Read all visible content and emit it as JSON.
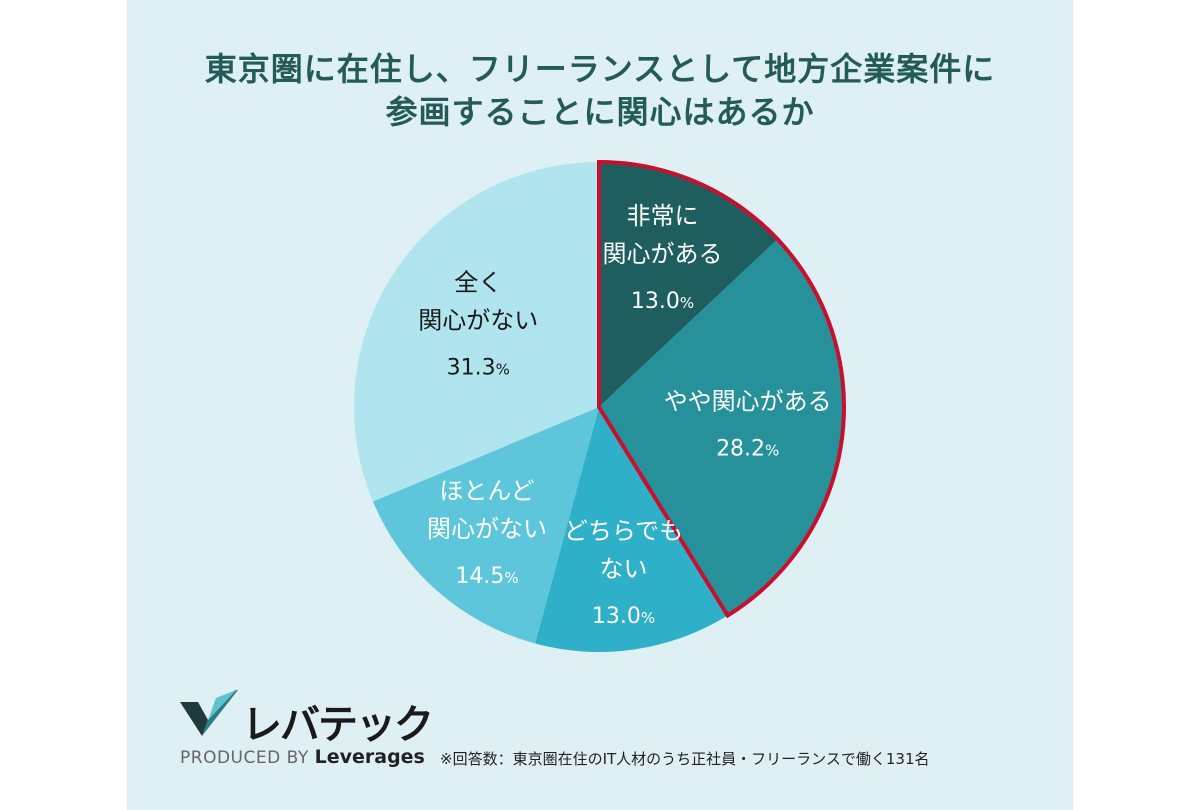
{
  "title_lines": [
    "東京圏に在住し、フリーランスとして地方企業案件に",
    "参画することに関心はあるか"
  ],
  "chart_data": {
    "type": "pie",
    "start_angle_deg": 0,
    "direction": "clockwise",
    "highlight": "segments 1-2 outlined in red",
    "slices": [
      {
        "label_lines": [
          "非常に",
          "関心がある"
        ],
        "value": 13.0,
        "pct_num": "13.0",
        "pct_sign": "%",
        "color": "#1f5e5e",
        "label_color": "#ffffff"
      },
      {
        "label_lines": [
          "やや関心がある"
        ],
        "value": 28.2,
        "pct_num": "28.2",
        "pct_sign": "%",
        "color": "#26909b",
        "label_color": "#ffffff"
      },
      {
        "label_lines": [
          "どちらでも",
          "ない"
        ],
        "value": 13.0,
        "pct_num": "13.0",
        "pct_sign": "%",
        "color": "#2fb0c9",
        "label_color": "#ffffff"
      },
      {
        "label_lines": [
          "ほとんど",
          "関心がない"
        ],
        "value": 14.5,
        "pct_num": "14.5",
        "pct_sign": "%",
        "color": "#5dc6da",
        "label_color": "#ffffff"
      },
      {
        "label_lines": [
          "全く",
          "関心がない"
        ],
        "value": 31.3,
        "pct_num": "31.3",
        "pct_sign": "%",
        "color": "#b0e4ee",
        "label_color": "#1a1a1a"
      }
    ],
    "highlight_color": "#c8102e"
  },
  "logo": {
    "name": "レバテック",
    "produced_by": "PRODUCED BY",
    "brand": "Leverages"
  },
  "footnote": "※回答数：東京圏在住のIT人材のうち正社員・フリーランスで働く131名"
}
